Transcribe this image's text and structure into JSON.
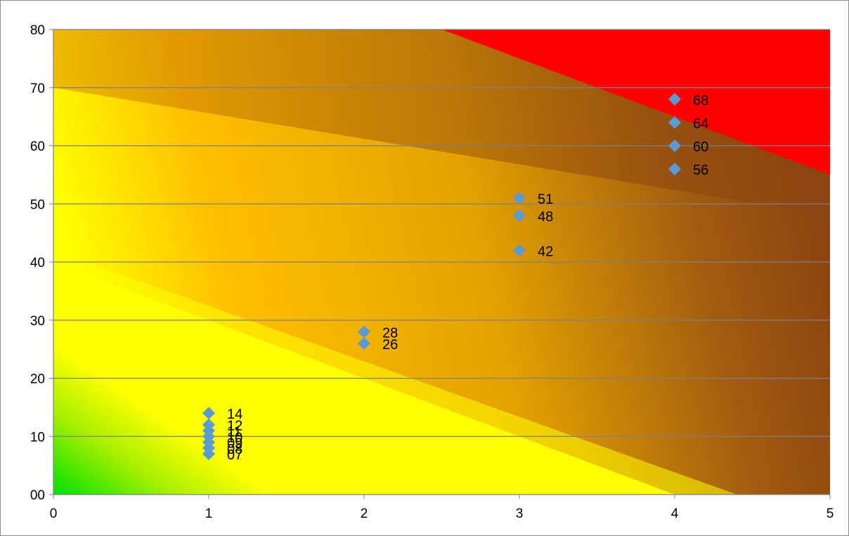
{
  "chart_data": {
    "type": "scatter",
    "title": "",
    "xlabel": "",
    "ylabel": "",
    "xlim": [
      0,
      5
    ],
    "ylim": [
      0,
      80
    ],
    "x_ticks": [
      "0",
      "1",
      "2",
      "3",
      "4",
      "5"
    ],
    "y_ticks": [
      "00",
      "10",
      "20",
      "30",
      "40",
      "50",
      "60",
      "70",
      "80"
    ],
    "grid": "horizontal",
    "legend": "none",
    "background": "gradient-risk-map",
    "colors": {
      "marker": "#5b9bd5",
      "zone_green": "#00e000",
      "zone_yellow": "#ffff00",
      "zone_orange": "#ffb400",
      "zone_brown": "#8c4a10",
      "zone_red": "#ff0000",
      "gridline": "#808080",
      "axis": "#808080"
    },
    "series": [
      {
        "points": [
          {
            "x": 1,
            "y": 7,
            "label": "07"
          },
          {
            "x": 1,
            "y": 8,
            "label": "08"
          },
          {
            "x": 1,
            "y": 9,
            "label": "09"
          },
          {
            "x": 1,
            "y": 10,
            "label": "10"
          },
          {
            "x": 1,
            "y": 11,
            "label": "11"
          },
          {
            "x": 1,
            "y": 12,
            "label": "12"
          },
          {
            "x": 1,
            "y": 14,
            "label": "14"
          },
          {
            "x": 2,
            "y": 26,
            "label": "26"
          },
          {
            "x": 2,
            "y": 28,
            "label": "28"
          },
          {
            "x": 3,
            "y": 42,
            "label": "42"
          },
          {
            "x": 3,
            "y": 48,
            "label": "48"
          },
          {
            "x": 3,
            "y": 51,
            "label": "51"
          },
          {
            "x": 4,
            "y": 56,
            "label": "56"
          },
          {
            "x": 4,
            "y": 60,
            "label": "60"
          },
          {
            "x": 4,
            "y": 64,
            "label": "64"
          },
          {
            "x": 4,
            "y": 68,
            "label": "68"
          }
        ]
      }
    ]
  }
}
